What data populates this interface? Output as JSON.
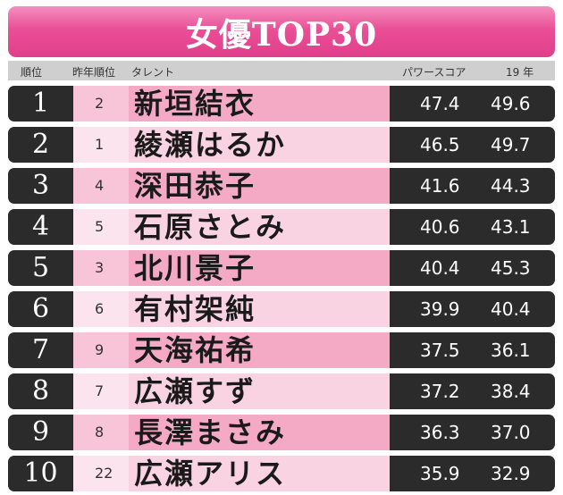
{
  "title": "女優TOP30",
  "header": {
    "rank": "順位",
    "prev": "昨年順位",
    "talent": "タレント",
    "score": "パワースコア",
    "y19": "19 年"
  },
  "rows": [
    {
      "rank": "1",
      "prev": "2",
      "name": "新垣結衣",
      "score": "47.4",
      "y19": "49.6"
    },
    {
      "rank": "2",
      "prev": "1",
      "name": "綾瀬はるか",
      "score": "46.5",
      "y19": "49.7"
    },
    {
      "rank": "3",
      "prev": "4",
      "name": "深田恭子",
      "score": "41.6",
      "y19": "44.3"
    },
    {
      "rank": "4",
      "prev": "5",
      "name": "石原さとみ",
      "score": "40.6",
      "y19": "43.1"
    },
    {
      "rank": "5",
      "prev": "3",
      "name": "北川景子",
      "score": "40.4",
      "y19": "45.3"
    },
    {
      "rank": "6",
      "prev": "6",
      "name": "有村架純",
      "score": "39.9",
      "y19": "40.4"
    },
    {
      "rank": "7",
      "prev": "9",
      "name": "天海祐希",
      "score": "37.5",
      "y19": "36.1"
    },
    {
      "rank": "8",
      "prev": "7",
      "name": "広瀬すず",
      "score": "37.2",
      "y19": "38.4"
    },
    {
      "rank": "9",
      "prev": "8",
      "name": "長澤まさみ",
      "score": "36.3",
      "y19": "37.0"
    },
    {
      "rank": "10",
      "prev": "22",
      "name": "広瀬アリス",
      "score": "35.9",
      "y19": "32.9"
    }
  ]
}
